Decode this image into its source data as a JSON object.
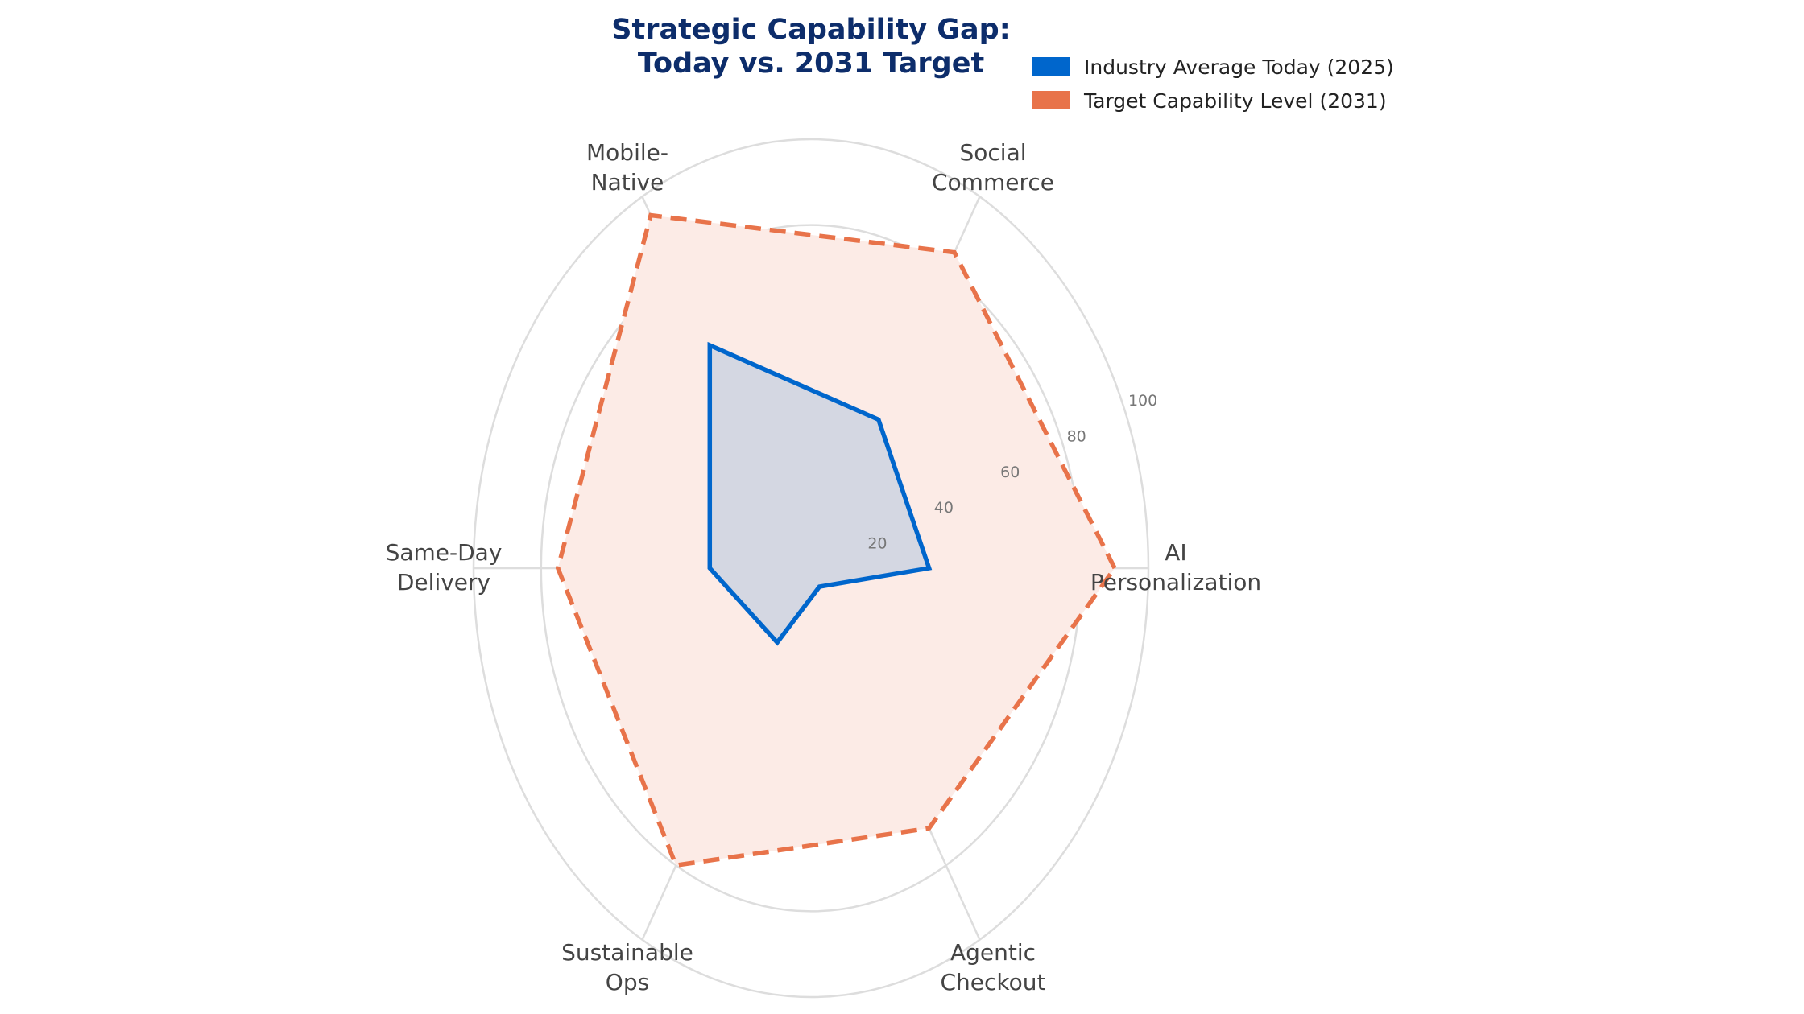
{
  "chart_data": {
    "type": "radar",
    "title": [
      "Strategic Capability Gap:",
      "Today vs. 2031 Target"
    ],
    "categories": [
      [
        "AI",
        "Personalization"
      ],
      [
        "Social",
        "Commerce"
      ],
      [
        "Mobile-",
        "Native"
      ],
      [
        "Same-Day",
        "Delivery"
      ],
      [
        "Sustainable",
        "Ops"
      ],
      [
        "Agentic",
        "Checkout"
      ]
    ],
    "radial_ticks": [
      "20",
      "40",
      "60",
      "80",
      "100"
    ],
    "rlim": [
      0,
      100
    ],
    "grid": true,
    "legend_placement": "top-right",
    "series": [
      {
        "name": "Industry Average Today (2025)",
        "values": [
          35,
          40,
          60,
          30,
          20,
          5
        ],
        "color": "#0066cc",
        "fill": "#d4d7e2",
        "line_style": "solid"
      },
      {
        "name": "Target Capability Level (2031)",
        "values": [
          90,
          85,
          95,
          75,
          80,
          70
        ],
        "color": "#e8734a",
        "fill": "#fcebe6",
        "line_style": "dashed"
      }
    ]
  }
}
